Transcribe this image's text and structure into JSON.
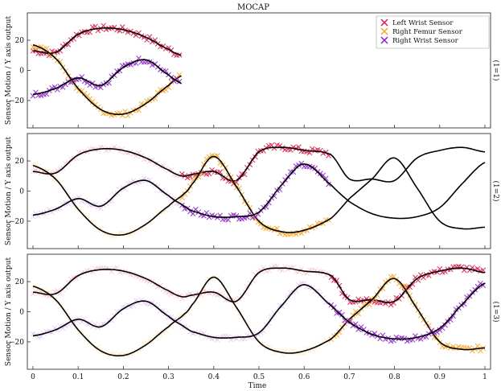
{
  "chart_data": {
    "type": "line",
    "title": "MOCAP",
    "xlabel": "Time",
    "ylabel": "Sensor Motion / Y axis output",
    "xlim": [
      0,
      1
    ],
    "ylim": [
      -35,
      35
    ],
    "xticks": [
      0,
      0.1,
      0.2,
      0.3,
      0.4,
      0.5,
      0.6,
      0.7,
      0.8,
      0.9,
      1
    ],
    "xtick_labels": [
      "0",
      "0.1",
      "0.2",
      "0.3",
      "0.4",
      "0.5",
      "0.6",
      "0.7",
      "0.8",
      "0.9",
      "1"
    ],
    "yticks": [
      -20,
      0,
      20
    ],
    "ytick_labels": [
      "−20",
      "0",
      "20"
    ],
    "legend": {
      "placement": "top-right",
      "marker": "×"
    },
    "series": [
      {
        "name": "Left Wrist Sensor",
        "color": "#d6194b"
      },
      {
        "name": "Right Femur Sensor",
        "color": "#f5a623"
      },
      {
        "name": "Right Wrist Sensor",
        "color": "#8a1fc7"
      }
    ],
    "panels": [
      {
        "label": "(1=1)",
        "observed_until": 0.33
      },
      {
        "label": "(1=2)",
        "observed_until": 0.66
      },
      {
        "label": "(1=3)",
        "observed_until": 1.0
      }
    ],
    "curves": {
      "x": [
        0,
        0.05,
        0.1,
        0.15,
        0.2,
        0.25,
        0.3,
        0.33,
        0.35,
        0.4,
        0.45,
        0.5,
        0.55,
        0.6,
        0.66,
        0.7,
        0.75,
        0.8,
        0.85,
        0.9,
        0.95,
        1.0
      ],
      "left_wrist": [
        13,
        12,
        24,
        28,
        27,
        22,
        14,
        10,
        11,
        13,
        7,
        26,
        29,
        27,
        24,
        8,
        8,
        7,
        22,
        27,
        29,
        26
      ],
      "right_femur": [
        17,
        8,
        -12,
        -26,
        -29,
        -22,
        -10,
        -3,
        4,
        23,
        3,
        -20,
        -27,
        -26,
        -18,
        -5,
        8,
        22,
        2,
        -20,
        -25,
        -24
      ],
      "right_wrist": [
        -16,
        -12,
        -5,
        -10,
        2,
        7,
        -3,
        -9,
        -13,
        -17,
        -17,
        -14,
        4,
        18,
        4,
        -7,
        -15,
        -18,
        -17,
        -11,
        5,
        19
      ]
    }
  }
}
